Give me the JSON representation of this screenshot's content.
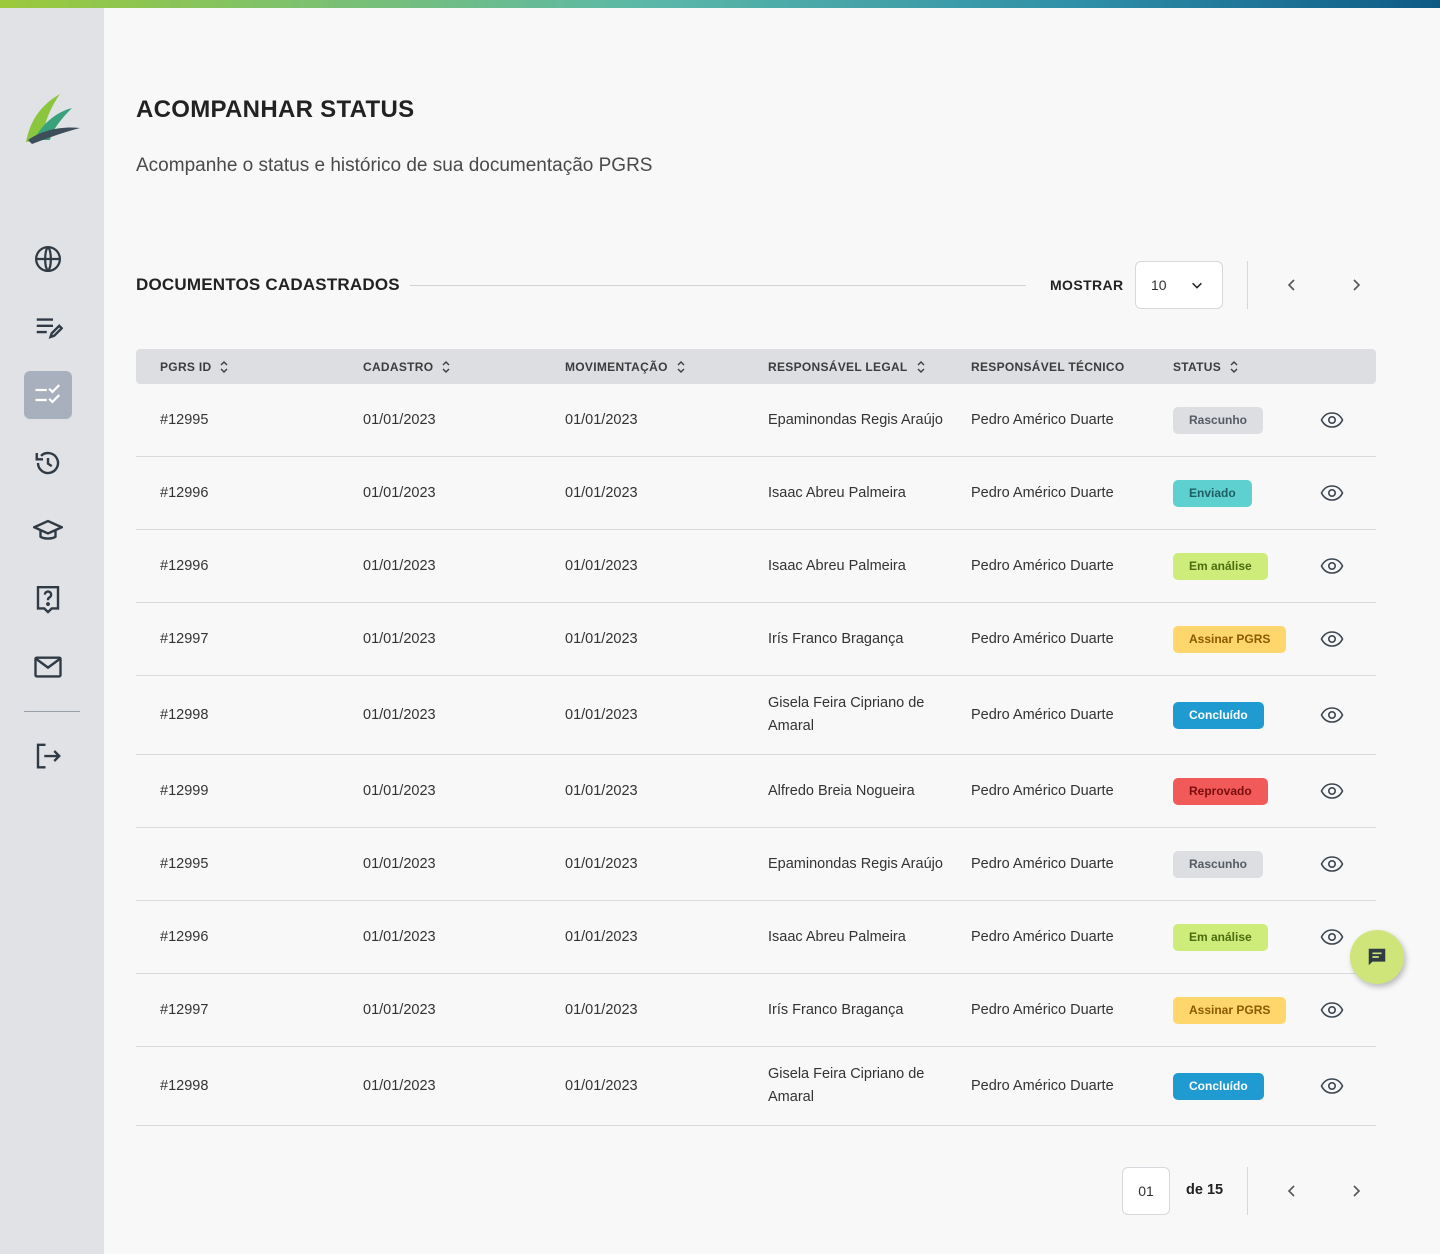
{
  "colors": {
    "accent_green": "#9cc93b",
    "accent_blue": "#0e5a86",
    "sidebar_bg": "#e0e2e6",
    "fab_bg": "#cfe57a"
  },
  "sidebar": {
    "items": [
      {
        "icon": "globe-icon"
      },
      {
        "icon": "edit-list-icon"
      },
      {
        "icon": "checklist-icon",
        "active": true
      },
      {
        "icon": "history-icon"
      },
      {
        "icon": "graduation-cap-icon"
      },
      {
        "icon": "help-icon"
      },
      {
        "icon": "mail-icon"
      },
      {
        "icon": "logout-icon"
      }
    ]
  },
  "header": {
    "title": "ACOMPANHAR STATUS",
    "subtitle": "Acompanhe o status e histórico de sua documentação PGRS"
  },
  "section": {
    "title": "DOCUMENTOS CADASTRADOS",
    "show_label": "MOSTRAR",
    "page_size": "10"
  },
  "table": {
    "columns": [
      "PGRS ID",
      "CADASTRO",
      "MOVIMENTAÇÃO",
      "RESPONSÁVEL LEGAL",
      "RESPONSÁVEL TÉCNICO",
      "STATUS"
    ],
    "rows": [
      {
        "id": "#12995",
        "cadastro": "01/01/2023",
        "movimentacao": "01/01/2023",
        "legal": "Epaminondas Regis Araújo",
        "tecnico": "Pedro Américo Duarte",
        "status": "Rascunho"
      },
      {
        "id": "#12996",
        "cadastro": "01/01/2023",
        "movimentacao": "01/01/2023",
        "legal": "Isaac Abreu Palmeira",
        "tecnico": "Pedro Américo Duarte",
        "status": "Enviado"
      },
      {
        "id": "#12996",
        "cadastro": "01/01/2023",
        "movimentacao": "01/01/2023",
        "legal": "Isaac Abreu Palmeira",
        "tecnico": "Pedro Américo Duarte",
        "status": "Em análise"
      },
      {
        "id": "#12997",
        "cadastro": "01/01/2023",
        "movimentacao": "01/01/2023",
        "legal": "Irís Franco Bragança",
        "tecnico": "Pedro Américo Duarte",
        "status": "Assinar PGRS"
      },
      {
        "id": "#12998",
        "cadastro": "01/01/2023",
        "movimentacao": "01/01/2023",
        "legal": "Gisela Feira Cipriano de Amaral",
        "tecnico": "Pedro Américo Duarte",
        "status": "Concluído"
      },
      {
        "id": "#12999",
        "cadastro": "01/01/2023",
        "movimentacao": "01/01/2023",
        "legal": "Alfredo Breia Nogueira",
        "tecnico": "Pedro Américo Duarte",
        "status": "Reprovado"
      },
      {
        "id": "#12995",
        "cadastro": "01/01/2023",
        "movimentacao": "01/01/2023",
        "legal": "Epaminondas Regis Araújo",
        "tecnico": "Pedro Américo Duarte",
        "status": "Rascunho"
      },
      {
        "id": "#12996",
        "cadastro": "01/01/2023",
        "movimentacao": "01/01/2023",
        "legal": "Isaac Abreu Palmeira",
        "tecnico": "Pedro Américo Duarte",
        "status": "Em análise"
      },
      {
        "id": "#12997",
        "cadastro": "01/01/2023",
        "movimentacao": "01/01/2023",
        "legal": "Irís Franco Bragança",
        "tecnico": "Pedro Américo Duarte",
        "status": "Assinar PGRS"
      },
      {
        "id": "#12998",
        "cadastro": "01/01/2023",
        "movimentacao": "01/01/2023",
        "legal": "Gisela Feira Cipriano de Amaral",
        "tecnico": "Pedro Américo Duarte",
        "status": "Concluído"
      }
    ],
    "status_styles": {
      "Rascunho": {
        "bg": "#dcdee2",
        "fg": "#555b63"
      },
      "Enviado": {
        "bg": "#5fd0d0",
        "fg": "#1d5f63"
      },
      "Em análise": {
        "bg": "#cdec7a",
        "fg": "#4b6b10"
      },
      "Assinar PGRS": {
        "bg": "#ffd66b",
        "fg": "#8a5a00"
      },
      "Concluído": {
        "bg": "#1f9bd1",
        "fg": "#ffffff"
      },
      "Reprovado": {
        "bg": "#f25a5a",
        "fg": "#7a0d0d"
      }
    }
  },
  "pagination": {
    "current": "01",
    "of_label": "de 15"
  }
}
